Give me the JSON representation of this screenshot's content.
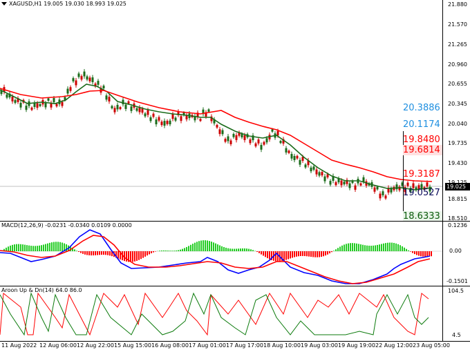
{
  "main": {
    "title": "XAGUSD,H1  19.005 19.030 18.993 19.025",
    "y_labels": [
      "21.880",
      "21.570",
      "21.265",
      "20.960",
      "20.655",
      "20.345",
      "20.040",
      "19.735",
      "19.430",
      "19.125",
      "18.815",
      "18.510"
    ],
    "current_price": "19.025",
    "levels": [
      "20.3886",
      "20.1174",
      "19.8480",
      "19.6814",
      "19.3187",
      "19.0527",
      "18.6333"
    ],
    "colors": {
      "green": "#1a6b1a",
      "red": "#ff0000",
      "blue": "#1e8fe0",
      "navy": "#0a0a5a",
      "dkgreen": "#0b5b0b"
    }
  },
  "macd": {
    "title": "MACD(12,26,9) -0.0231 -0.0340 0.0109 0.0000",
    "y_labels": [
      "0.1236",
      "0.00",
      "-0.1501"
    ]
  },
  "aroon": {
    "title": "Aroon Up & Dn(14) 64.0 86.0",
    "y_labels": [
      "104.5",
      "4.5"
    ]
  },
  "x_labels": [
    "11 Aug 2022",
    "12 Aug 06:00",
    "12 Aug 22:00",
    "15 Aug 15:00",
    "16 Aug 08:00",
    "17 Aug 01:00",
    "17 Aug 17:00",
    "18 Aug 10:00",
    "19 Aug 03:00",
    "19 Aug 19:00",
    "22 Aug 12:00",
    "23 Aug 05:00"
  ]
}
